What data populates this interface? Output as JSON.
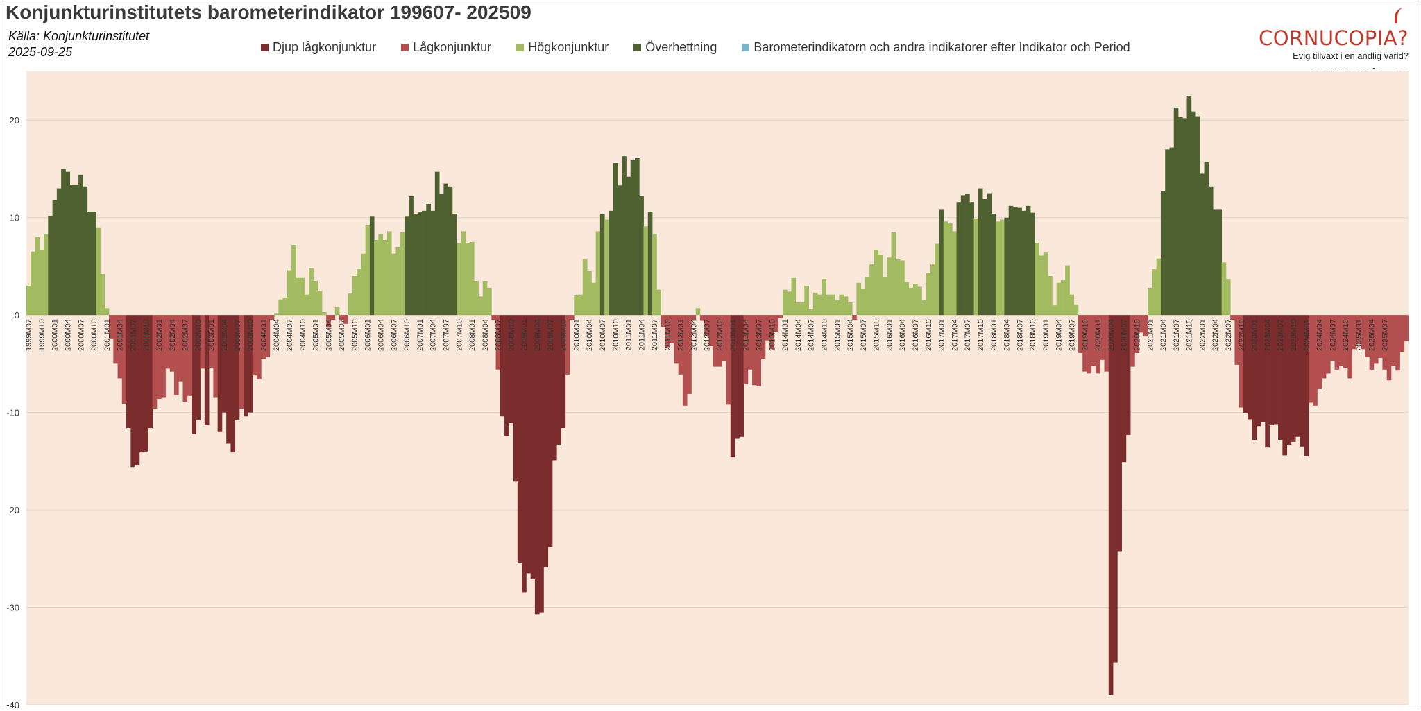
{
  "header": {
    "title": "Konjunkturinstitutets barometerindikator 199607- 202509",
    "source": "Källa: Konjunkturinstitutet",
    "date": "2025-09-25"
  },
  "brand": {
    "name": "CORNUCOPIA?",
    "tagline": "Evig tillväxt i en ändlig värld?",
    "url": "cornucopia..se",
    "color": "#c0392b"
  },
  "legend": [
    {
      "label": "Djup lågkonjunktur",
      "color": "#7b2d2d"
    },
    {
      "label": "Lågkonjunktur",
      "color": "#b34f4f"
    },
    {
      "label": "Högkonjunktur",
      "color": "#a3bb61"
    },
    {
      "label": "Överhettning",
      "color": "#4f6130"
    },
    {
      "label": "Barometerindikatorn och andra indikatorer efter Indikator och Period",
      "color": "#7bb3c9"
    }
  ],
  "chart_data": {
    "type": "bar",
    "plot_background": "#fae9db",
    "ylim": [
      -40,
      25
    ],
    "yticks": [
      20,
      10,
      0,
      -10,
      -20,
      -30,
      -40
    ],
    "grid": true,
    "x_start": "1999M07",
    "x_end": "2025M09",
    "xtick_labels": [
      "1999M07",
      "1999M10",
      "2000M01",
      "2000M04",
      "2000M07",
      "2000M10",
      "2001M01",
      "2001M04",
      "2001M07",
      "2001M10",
      "2002M01",
      "2002M04",
      "2002M07",
      "2002M10",
      "2003M01",
      "2003M04",
      "2003M07",
      "2003M10",
      "2004M01",
      "2004M04",
      "2004M07",
      "2004M10",
      "2005M01",
      "2005M04",
      "2005M07",
      "2005M10",
      "2006M01",
      "2006M04",
      "2006M07",
      "2006M10",
      "2007M01",
      "2007M04",
      "2007M07",
      "2007M10",
      "2008M01",
      "2008M04",
      "2008M07",
      "2008M10",
      "2009M01",
      "2009M04",
      "2009M07",
      "2009M10",
      "2010M01",
      "2010M04",
      "2010M07",
      "2010M10",
      "2011M01",
      "2011M04",
      "2011M07",
      "2011M10",
      "2012M01",
      "2012M04",
      "2012M07",
      "2012M10",
      "2013M01",
      "2013M04",
      "2013M07",
      "2013M10",
      "2014M01",
      "2014M04",
      "2014M07",
      "2014M10",
      "2015M01",
      "2015M04",
      "2015M07",
      "2015M10",
      "2016M01",
      "2016M04",
      "2016M07",
      "2016M10",
      "2017M01",
      "2017M04",
      "2017M07",
      "2017M10",
      "2018M01",
      "2018M04",
      "2018M07",
      "2018M10",
      "2019M01",
      "2019M04",
      "2019M07",
      "2019M10",
      "2020M01",
      "2020M04",
      "2020M07",
      "2020M10",
      "2021M01",
      "2021M04",
      "2021M07",
      "2021M10",
      "2022M01",
      "2022M04",
      "2022M07",
      "2022M10",
      "2023M01",
      "2023M04",
      "2023M07",
      "2023M10",
      "2024M01",
      "2024M04",
      "2024M07",
      "2024M10",
      "2025M01",
      "2025M04",
      "2025M07"
    ],
    "series": [
      {
        "values": [
          3,
          6.5,
          8,
          6.7,
          8.3,
          10.2,
          11.8,
          13,
          15,
          14.7,
          13.4,
          13.4,
          14.4,
          13.2,
          10.6,
          10.6,
          9,
          4.2,
          0.7,
          -2.4,
          -5,
          -6.5,
          -9.1,
          -11.6,
          -15.6,
          -15.4,
          -14.1,
          -14,
          -11.6,
          -9.6,
          -8.6,
          -8.5,
          -5.5,
          -5.8,
          -8.2,
          -6.8,
          -8.9,
          -8.3,
          -12.2,
          -10.8,
          -5.5,
          -11.3,
          -5.4,
          -8.5,
          -12,
          -10,
          -13.2,
          -14.1,
          -10.8,
          -9.6,
          -10.4,
          -10,
          -6.2,
          -6.6,
          -4.5,
          -4.3,
          -0.5,
          0.2,
          1.6,
          1.8,
          4.6,
          7.2,
          3.8,
          3.8,
          2.1,
          4.8,
          3.5,
          2.5,
          0.3,
          -1.3,
          -0.5,
          0.8,
          -0.5,
          -0.9,
          2.2,
          4,
          4.7,
          6.3,
          9.2,
          10.1,
          7.7,
          8.3,
          7.7,
          8.6,
          6.3,
          7,
          8.5,
          10.1,
          12.2,
          10.4,
          10.6,
          10.7,
          11.4,
          10.7,
          14.7,
          12.4,
          13.5,
          13.2,
          10.4,
          7.4,
          8.6,
          7.4,
          7.5,
          3.5,
          1.9,
          3.5,
          2.8,
          -0.5,
          -5.6,
          -10.4,
          -12.4,
          -11.1,
          -17.1,
          -25.4,
          -28.5,
          -26.5,
          -27.1,
          -30.7,
          -30.5,
          -25.9,
          -23.8,
          -14.9,
          -13.3,
          -11.6,
          -6.1,
          -0.5,
          2,
          2.1,
          5.7,
          4.5,
          3.3,
          8.6,
          10.4,
          9.8,
          10.7,
          15.6,
          13.3,
          16.3,
          14.2,
          15.9,
          16.1,
          12.2,
          9.1,
          10.6,
          8.3,
          2.6,
          -1.2,
          -3.3,
          -2.9,
          -5,
          -6.1,
          -9.3,
          -8.1,
          -0.5,
          0.7,
          -0.6,
          -2.2,
          -3.2,
          -5.3,
          -5.3,
          -4.7,
          -9.2,
          -14.6,
          -12.7,
          -12.5,
          -7.1,
          -5.6,
          -7.2,
          -7.3,
          -4.5,
          -2.6,
          -3.5,
          -1.7,
          -0.3,
          2.6,
          2.4,
          3.8,
          1.3,
          1.3,
          3,
          0.6,
          2.3,
          2.1,
          3.7,
          2.1,
          2.1,
          1.5,
          2.1,
          1.9,
          1.3,
          -0.5,
          3.3,
          2.7,
          3.9,
          5.2,
          6.7,
          6.2,
          3.9,
          5.9,
          8.5,
          5.7,
          5.6,
          3.4,
          2.8,
          3.2,
          2.9,
          1.5,
          4.3,
          5.2,
          7.3,
          10.8,
          9.6,
          9.4,
          8.6,
          11.6,
          12.3,
          12.4,
          11.6,
          9.9,
          13,
          11.9,
          12.5,
          10.4,
          9.6,
          9.8,
          10,
          11.2,
          11.1,
          11,
          10.7,
          11.2,
          10.5,
          7.4,
          6.1,
          6.4,
          4,
          1,
          3.3,
          3.6,
          5.1,
          2.1,
          1.1,
          -3.9,
          -5.8,
          -6,
          -5.2,
          -6,
          -4.6,
          -5.8,
          -39,
          -35.7,
          -24.3,
          -15.1,
          -12.3,
          -5.3,
          -3.9,
          -1.8,
          -2.2,
          2.8,
          4.7,
          5.8,
          12.7,
          17,
          17.2,
          21.3,
          20.3,
          20.2,
          22.5,
          20.9,
          20.4,
          14.5,
          15.7,
          13.2,
          10.8,
          10.8,
          5.4,
          3.7,
          -0.5,
          -5.1,
          -9.5,
          -10.1,
          -10.7,
          -12.8,
          -11.4,
          -11,
          -13.6,
          -11.3,
          -11.2,
          -12.8,
          -14.4,
          -13.3,
          -13,
          -12.5,
          -13.5,
          -14.5,
          -9,
          -9.3,
          -7.6,
          -6.5,
          -6,
          -4.7,
          -5.6,
          -5.2,
          -5.4,
          -6.5,
          -3.5,
          -3,
          -3.5,
          -4.3,
          -5.6,
          -5,
          -4.4,
          -5.6,
          -6.7,
          -5.2,
          -5.7,
          -3.8,
          -2.7
        ]
      }
    ]
  }
}
